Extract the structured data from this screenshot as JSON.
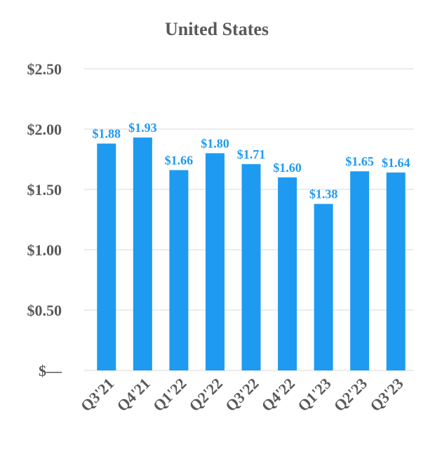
{
  "chart_data": {
    "type": "bar",
    "title": "United States",
    "categories": [
      "Q3'21",
      "Q4'21",
      "Q1'22",
      "Q2'22",
      "Q3'22",
      "Q4'22",
      "Q1'23",
      "Q2'23",
      "Q3'23"
    ],
    "values": [
      1.88,
      1.93,
      1.66,
      1.8,
      1.71,
      1.6,
      1.38,
      1.65,
      1.64
    ],
    "data_labels": [
      "$1.88",
      "$1.93",
      "$1.66",
      "$1.80",
      "$1.71",
      "$1.60",
      "$1.38",
      "$1.65",
      "$1.64"
    ],
    "ylim": [
      0,
      2.5
    ],
    "yticks": [
      0,
      0.5,
      1.0,
      1.5,
      2.0,
      2.5
    ],
    "ytick_labels": [
      "$—",
      "$0.50",
      "$1.00",
      "$1.50",
      "$2.00",
      "$2.50"
    ],
    "grid": true,
    "colors": {
      "bar": "#1e9bf0",
      "label": "#1e9bf0",
      "text": "#595959",
      "grid": "#d9d9d9"
    }
  }
}
